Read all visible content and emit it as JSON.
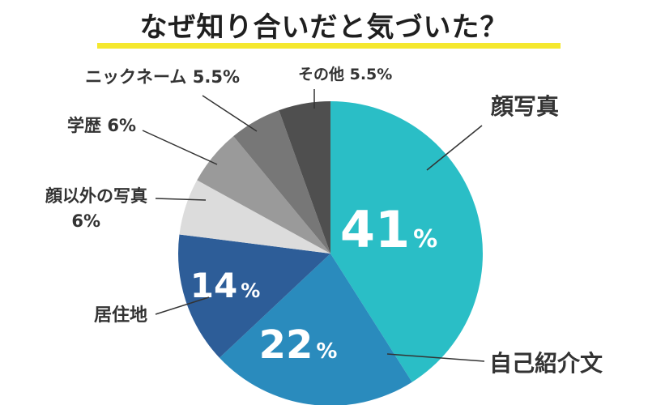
{
  "title": "なぜ知り合いだと気づいた？",
  "colors": {
    "highlight": "#f5e82e",
    "teal": "#2abec6",
    "mid_blue": "#2a8bbd",
    "navy": "#2d5d98",
    "light_gray": "#dcdcdc",
    "mid_gray": "#9a9a9a",
    "gray": "#777777",
    "dark_gray": "#4f4f4f"
  },
  "chart_data": {
    "type": "pie",
    "title": "なぜ知り合いだと気づいた？",
    "unit": "%",
    "slices": [
      {
        "label": "顔写真",
        "value": 41,
        "color": "#2abec6",
        "inside_label": "41"
      },
      {
        "label": "自己紹介文",
        "value": 22,
        "color": "#2a8bbd",
        "inside_label": "22"
      },
      {
        "label": "居住地",
        "value": 14,
        "color": "#2d5d98",
        "inside_label": "14"
      },
      {
        "label": "顔以外の写真",
        "value": 6,
        "color": "#dcdcdc",
        "outside_label": [
          "顔以外の写真",
          "6%"
        ]
      },
      {
        "label": "学歴",
        "value": 6,
        "color": "#9a9a9a",
        "outside_label": [
          "学歴 6%"
        ]
      },
      {
        "label": "ニックネーム",
        "value": 5.5,
        "color": "#777777",
        "outside_label": [
          "ニックネーム 5.5%"
        ]
      },
      {
        "label": "その他",
        "value": 5.5,
        "color": "#4f4f4f",
        "outside_label": [
          "その他 5.5%"
        ]
      }
    ]
  }
}
